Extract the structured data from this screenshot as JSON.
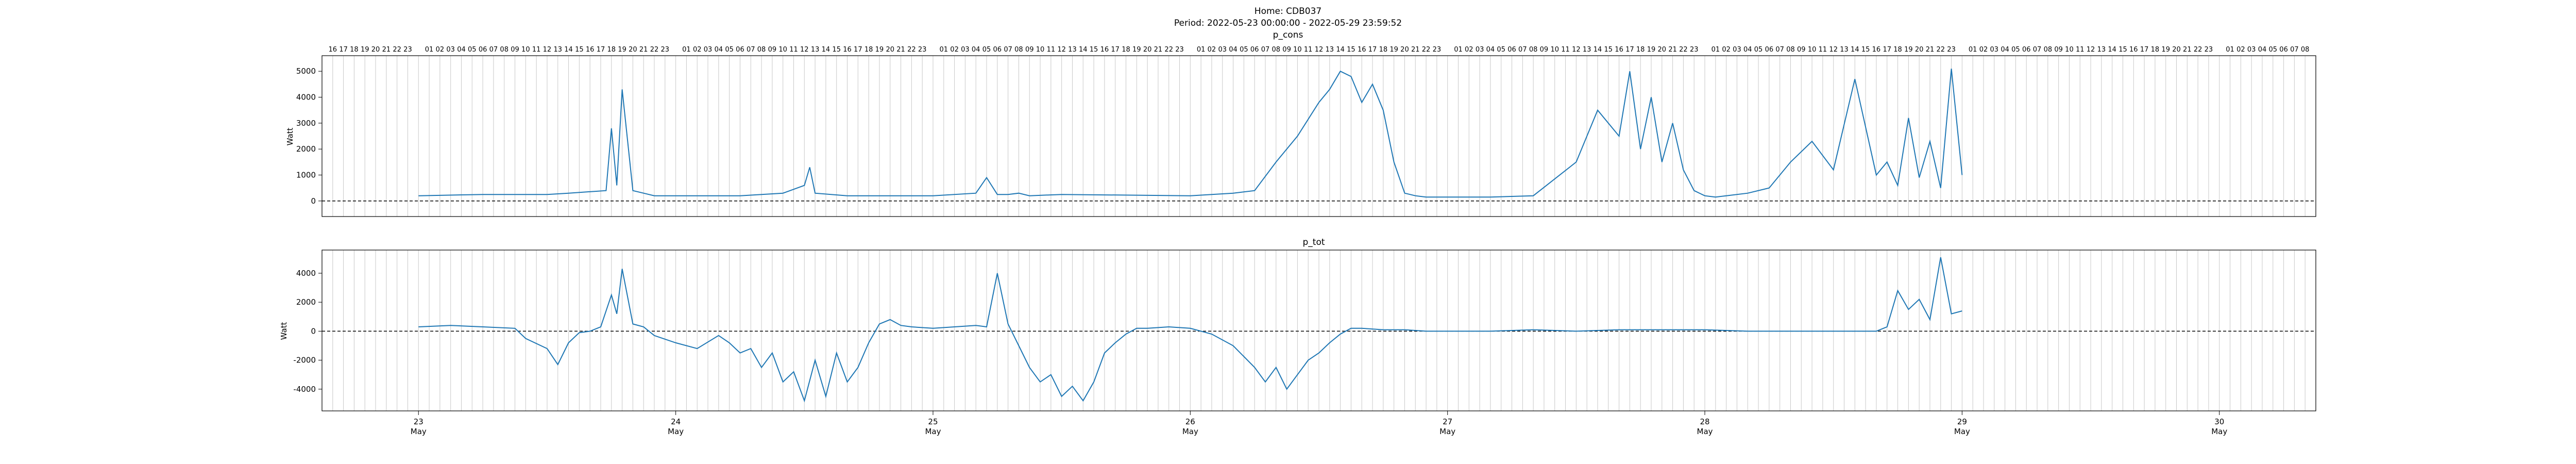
{
  "figure": {
    "title_line1": "Home: CDB037",
    "title_line2": "Period: 2022-05-23 00:00:00 - 2022-05-29 23:59:52"
  },
  "chart_data": [
    {
      "type": "line",
      "title": "p_cons",
      "ylabel": "Watt",
      "xlabel": "",
      "xlim": [
        "2022-05-22 15:00",
        "2022-05-30 09:00"
      ],
      "ylim": [
        -600,
        5600
      ],
      "yticks": [
        0,
        1000,
        2000,
        3000,
        4000,
        5000
      ],
      "hline": 0,
      "grid": "vertical hourly lines",
      "top_hour_ticks": [
        "16",
        "17",
        "18",
        "19",
        "20",
        "21",
        "22",
        "23",
        "",
        "01",
        "02",
        "03",
        "04",
        "05",
        "06",
        "07",
        "08",
        "09",
        "10",
        "11",
        "12",
        "13",
        "14",
        "15",
        "16",
        "17",
        "18",
        "19",
        "20",
        "21",
        "22",
        "23",
        "",
        "01",
        "02",
        "03",
        "04",
        "05",
        "06",
        "07",
        "08",
        "09",
        "10",
        "11",
        "12",
        "13",
        "14",
        "15",
        "16",
        "17",
        "18",
        "19",
        "20",
        "21",
        "22",
        "23",
        "",
        "01",
        "02",
        "03",
        "04",
        "05",
        "06",
        "07",
        "08",
        "09",
        "10",
        "11",
        "12",
        "13",
        "14",
        "15",
        "16",
        "17",
        "18",
        "19",
        "20",
        "21",
        "22",
        "23",
        "",
        "01",
        "02",
        "03",
        "04",
        "05",
        "06",
        "07",
        "08",
        "09",
        "10",
        "11",
        "12",
        "13",
        "14",
        "15",
        "16",
        "17",
        "18",
        "19",
        "20",
        "21",
        "22",
        "23",
        "",
        "01",
        "02",
        "03",
        "04",
        "05",
        "06",
        "07",
        "08",
        "09",
        "10",
        "11",
        "12",
        "13",
        "14",
        "15",
        "16",
        "17",
        "18",
        "19",
        "20",
        "21",
        "22",
        "23",
        "",
        "01",
        "02",
        "03",
        "04",
        "05",
        "06",
        "07",
        "08",
        "09",
        "10",
        "11",
        "12",
        "13",
        "14",
        "15",
        "16",
        "17",
        "18",
        "19",
        "20",
        "21",
        "22",
        "23",
        "",
        "01",
        "02",
        "03",
        "04",
        "05",
        "06",
        "07",
        "08",
        "09",
        "10",
        "11",
        "12",
        "13",
        "14",
        "15",
        "16",
        "17",
        "18",
        "19",
        "20",
        "21",
        "22",
        "23",
        "",
        "01",
        "02",
        "03",
        "04",
        "05",
        "06",
        "07",
        "08"
      ],
      "series": [
        {
          "name": "",
          "color": "#1f77b4",
          "x_hours_from_may23": [
            0,
            6,
            12,
            14,
            17.5,
            18,
            18.5,
            19,
            20,
            21,
            22,
            24,
            30,
            34,
            36,
            36.5,
            37,
            40,
            44,
            48,
            52,
            53,
            54,
            55,
            56,
            57,
            60,
            72,
            76,
            78,
            80,
            82,
            84,
            85,
            86,
            87,
            88,
            89,
            90,
            91,
            92,
            93,
            94,
            96,
            100,
            104,
            108,
            110,
            112,
            113,
            114,
            115,
            116,
            117,
            118,
            119,
            120,
            121,
            122,
            124,
            126,
            128,
            130,
            132,
            134,
            136,
            137,
            138,
            139,
            140,
            141,
            142,
            143,
            144
          ],
          "values": [
            200,
            250,
            250,
            300,
            400,
            2800,
            600,
            4300,
            400,
            300,
            200,
            200,
            200,
            300,
            600,
            1300,
            300,
            200,
            200,
            200,
            300,
            900,
            250,
            250,
            300,
            200,
            250,
            200,
            300,
            400,
            1500,
            2500,
            3800,
            4300,
            5000,
            4800,
            3800,
            4500,
            3500,
            1500,
            300,
            200,
            150,
            150,
            150,
            200,
            1500,
            3500,
            2500,
            5000,
            2000,
            4000,
            1500,
            3000,
            1200,
            400,
            200,
            150,
            200,
            300,
            500,
            1500,
            2300,
            1200,
            4700,
            1000,
            1500,
            600,
            3200,
            900,
            2300,
            500,
            5100,
            1000,
            1200,
            1400
          ]
        }
      ]
    },
    {
      "type": "line",
      "title": "p_tot",
      "ylabel": "Watt",
      "xlabel": "",
      "xlim": [
        "2022-05-22 15:00",
        "2022-05-30 09:00"
      ],
      "ylim": [
        -5500,
        5600
      ],
      "yticks": [
        -4000,
        -2000,
        0,
        2000,
        4000
      ],
      "hline": 0,
      "grid": "vertical hourly lines",
      "x_day_ticks": [
        {
          "day": "23",
          "month": "May"
        },
        {
          "day": "24",
          "month": "May"
        },
        {
          "day": "25",
          "month": "May"
        },
        {
          "day": "26",
          "month": "May"
        },
        {
          "day": "27",
          "month": "May"
        },
        {
          "day": "28",
          "month": "May"
        },
        {
          "day": "29",
          "month": "May"
        },
        {
          "day": "30",
          "month": "May"
        }
      ],
      "series": [
        {
          "name": "",
          "color": "#1f77b4",
          "x_hours_from_may23": [
            0,
            3,
            6,
            9,
            10,
            12,
            13,
            14,
            15,
            16,
            17,
            18,
            18.5,
            19,
            20,
            21,
            22,
            24,
            26,
            28,
            29,
            30,
            31,
            32,
            33,
            34,
            35,
            36,
            37,
            38,
            39,
            40,
            41,
            42,
            43,
            44,
            45,
            46,
            48,
            50,
            52,
            53,
            54,
            55,
            56,
            57,
            58,
            59,
            60,
            61,
            62,
            63,
            64,
            65,
            66,
            67,
            68,
            70,
            72,
            74,
            76,
            78,
            79,
            80,
            81,
            82,
            83,
            84,
            85,
            86,
            87,
            88,
            90,
            92,
            94,
            96,
            100,
            104,
            108,
            112,
            116,
            120,
            124,
            128,
            132,
            134,
            136,
            137,
            138,
            139,
            140,
            141,
            142,
            143,
            144
          ],
          "values": [
            300,
            400,
            300,
            200,
            -500,
            -1200,
            -2300,
            -800,
            -100,
            0,
            300,
            2500,
            1200,
            4300,
            500,
            300,
            -300,
            -800,
            -1200,
            -300,
            -800,
            -1500,
            -1200,
            -2500,
            -1500,
            -3500,
            -2800,
            -4800,
            -2000,
            -4500,
            -1500,
            -3500,
            -2500,
            -800,
            500,
            800,
            400,
            300,
            200,
            300,
            400,
            300,
            4000,
            500,
            -1000,
            -2500,
            -3500,
            -3000,
            -4500,
            -3800,
            -4800,
            -3500,
            -1500,
            -800,
            -200,
            200,
            200,
            300,
            200,
            -200,
            -1000,
            -2500,
            -3500,
            -2500,
            -4000,
            -3000,
            -2000,
            -1500,
            -800,
            -200,
            200,
            200,
            100,
            100,
            0,
            0,
            0,
            100,
            0,
            100,
            100,
            100,
            0,
            0,
            0,
            0,
            0,
            300,
            2800,
            1500,
            2200,
            800,
            5100,
            1200,
            1400
          ]
        }
      ]
    }
  ]
}
